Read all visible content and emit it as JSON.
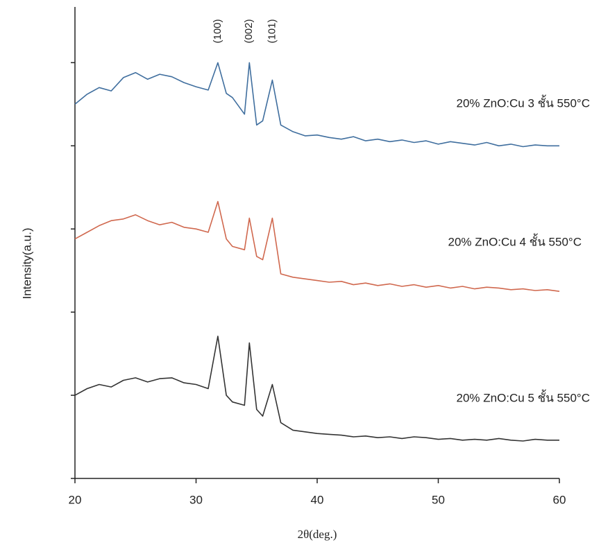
{
  "chart_data": {
    "type": "line",
    "x_label": "2θ(deg.)",
    "y_label": "Intensity(a.u.)",
    "annotations": [
      "(100)",
      "(002)",
      "(101)"
    ],
    "x": [
      20,
      21,
      22,
      23,
      24,
      25,
      26,
      27,
      28,
      29,
      30,
      31,
      31.8,
      32.5,
      33,
      34,
      34.4,
      35,
      35.5,
      36.3,
      37,
      38,
      39,
      40,
      41,
      42,
      43,
      44,
      45,
      46,
      47,
      48,
      49,
      50,
      51,
      52,
      53,
      54,
      55,
      56,
      57,
      58,
      59,
      60
    ],
    "series": [
      {
        "name": "20% ZnO:Cu 3 ชั้น 550°C",
        "color": "#3f6e9e",
        "values": [
          4.5,
          4.62,
          4.7,
          4.66,
          4.82,
          4.88,
          4.8,
          4.86,
          4.83,
          4.76,
          4.71,
          4.67,
          5.0,
          4.63,
          4.58,
          4.38,
          5.0,
          4.25,
          4.3,
          4.79,
          4.25,
          4.17,
          4.12,
          4.13,
          4.1,
          4.08,
          4.11,
          4.06,
          4.08,
          4.05,
          4.07,
          4.04,
          4.06,
          4.02,
          4.05,
          4.03,
          4.01,
          4.04,
          4.0,
          4.02,
          3.99,
          4.01,
          4.0,
          4.0
        ]
      },
      {
        "name": "20% ZnO:Cu 4 ชั้น 550°C",
        "color": "#d0684e",
        "values": [
          2.88,
          2.96,
          3.04,
          3.1,
          3.12,
          3.17,
          3.1,
          3.05,
          3.08,
          3.02,
          3.0,
          2.96,
          3.33,
          2.88,
          2.79,
          2.75,
          3.13,
          2.67,
          2.63,
          3.13,
          2.46,
          2.42,
          2.4,
          2.38,
          2.36,
          2.37,
          2.33,
          2.35,
          2.32,
          2.34,
          2.31,
          2.33,
          2.3,
          2.32,
          2.29,
          2.31,
          2.28,
          2.3,
          2.29,
          2.27,
          2.28,
          2.26,
          2.27,
          2.25
        ]
      },
      {
        "name": "20% ZnO:Cu 5 ชั้น 550°C",
        "color": "#333333",
        "values": [
          1.0,
          1.08,
          1.13,
          1.1,
          1.18,
          1.21,
          1.16,
          1.2,
          1.21,
          1.15,
          1.13,
          1.08,
          1.71,
          1.0,
          0.92,
          0.88,
          1.63,
          0.83,
          0.75,
          1.13,
          0.67,
          0.58,
          0.56,
          0.54,
          0.53,
          0.52,
          0.5,
          0.51,
          0.49,
          0.5,
          0.48,
          0.5,
          0.49,
          0.47,
          0.48,
          0.46,
          0.47,
          0.46,
          0.48,
          0.46,
          0.45,
          0.47,
          0.46,
          0.46
        ]
      }
    ],
    "xlim": [
      20,
      60
    ],
    "xticks": [
      20,
      30,
      40,
      50,
      60
    ],
    "ylim": [
      0,
      5.67
    ],
    "yticks": [
      0,
      1,
      2,
      3,
      4,
      5
    ],
    "grid": false
  }
}
